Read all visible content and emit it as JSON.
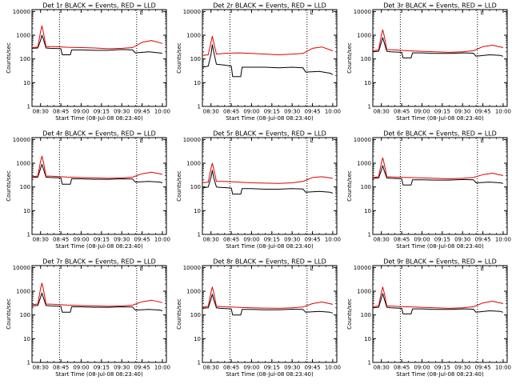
{
  "common": {
    "xlabel": "Start Time (08-Jul-08 08:23:40)",
    "ylabel": "Counts/sec",
    "x_ticks": [
      "08:30",
      "08:45",
      "09:00",
      "09:15",
      "09:30",
      "09:45",
      "10:00"
    ],
    "y_ticks": [
      "1",
      "10",
      "100",
      "1000",
      "10000"
    ],
    "marker": "L",
    "colors": {
      "events": "#000000",
      "lld": "#e00000",
      "frame": "#000000"
    }
  },
  "chart_data": [
    {
      "type": "line",
      "title": "Det 1r BLACK = Events, RED = LLD",
      "xlim": [
        "08:23:40",
        "10:03:00"
      ],
      "ylim": [
        1,
        12000
      ],
      "yscale": "log",
      "grid": false,
      "series": [
        {
          "name": "Events",
          "x": [
            "08:23:40",
            "08:28",
            "08:30",
            "08:31",
            "08:32",
            "08:34",
            "08:37",
            "08:45",
            "08:46",
            "08:52",
            "08:53",
            "09:00",
            "09:10",
            "09:20",
            "09:30",
            "09:38",
            "09:40",
            "09:50",
            "09:58",
            "10:00"
          ],
          "values": [
            280,
            290,
            600,
            1000,
            700,
            290,
            280,
            270,
            150,
            150,
            240,
            240,
            230,
            230,
            250,
            240,
            180,
            200,
            180,
            170
          ]
        },
        {
          "name": "LLD",
          "x": [
            "08:23:40",
            "08:28",
            "08:30",
            "08:31",
            "08:32",
            "08:34",
            "08:40",
            "08:50",
            "09:00",
            "09:10",
            "09:20",
            "09:30",
            "09:38",
            "09:45",
            "09:52",
            "10:00"
          ],
          "values": [
            300,
            320,
            1400,
            2500,
            1400,
            330,
            330,
            310,
            300,
            290,
            270,
            280,
            300,
            500,
            600,
            450
          ]
        }
      ],
      "vlines": [
        "08:44",
        "09:41"
      ]
    },
    {
      "type": "line",
      "title": "Det 2r BLACK = Events, RED = LLD",
      "xlim": [
        "08:23:40",
        "10:03:00"
      ],
      "ylim": [
        1,
        12000
      ],
      "yscale": "log",
      "grid": false,
      "series": [
        {
          "name": "Events",
          "x": [
            "08:23:40",
            "08:28",
            "08:30",
            "08:31",
            "08:32",
            "08:34",
            "08:40",
            "08:45",
            "08:46",
            "08:52",
            "08:53",
            "09:00",
            "09:10",
            "09:20",
            "09:30",
            "09:38",
            "09:40",
            "09:50",
            "09:58",
            "10:00"
          ],
          "values": [
            45,
            50,
            150,
            400,
            200,
            60,
            55,
            50,
            18,
            18,
            45,
            45,
            45,
            42,
            45,
            42,
            28,
            30,
            25,
            22
          ]
        },
        {
          "name": "LLD",
          "x": [
            "08:23:40",
            "08:28",
            "08:30",
            "08:31",
            "08:32",
            "08:34",
            "08:40",
            "08:50",
            "09:00",
            "09:10",
            "09:20",
            "09:30",
            "09:38",
            "09:45",
            "09:52",
            "10:00"
          ],
          "values": [
            140,
            150,
            500,
            900,
            500,
            160,
            170,
            180,
            170,
            160,
            150,
            160,
            170,
            280,
            320,
            220
          ]
        }
      ],
      "vlines": [
        "08:44",
        "09:41"
      ]
    },
    {
      "type": "line",
      "title": "Det 3r BLACK = Events, RED = LLD",
      "xlim": [
        "08:23:40",
        "10:03:00"
      ],
      "ylim": [
        1,
        12000
      ],
      "yscale": "log",
      "grid": false,
      "series": [
        {
          "name": "Events",
          "x": [
            "08:23:40",
            "08:28",
            "08:30",
            "08:31",
            "08:32",
            "08:34",
            "08:37",
            "08:45",
            "08:46",
            "08:52",
            "08:53",
            "09:00",
            "09:10",
            "09:20",
            "09:30",
            "09:38",
            "09:40",
            "09:50",
            "09:58",
            "10:00"
          ],
          "values": [
            200,
            210,
            500,
            800,
            500,
            210,
            200,
            190,
            110,
            110,
            180,
            180,
            170,
            170,
            180,
            175,
            130,
            150,
            140,
            130
          ]
        },
        {
          "name": "LLD",
          "x": [
            "08:23:40",
            "08:28",
            "08:30",
            "08:31",
            "08:32",
            "08:34",
            "08:40",
            "08:50",
            "09:00",
            "09:10",
            "09:20",
            "09:30",
            "09:38",
            "09:45",
            "09:52",
            "10:00"
          ],
          "values": [
            220,
            240,
            1000,
            1700,
            1000,
            250,
            240,
            220,
            210,
            200,
            190,
            200,
            220,
            330,
            380,
            300
          ]
        }
      ],
      "vlines": [
        "08:44",
        "09:41"
      ]
    },
    {
      "type": "line",
      "title": "Det 4r BLACK = Events, RED = LLD",
      "xlim": [
        "08:23:40",
        "10:03:00"
      ],
      "ylim": [
        1,
        12000
      ],
      "yscale": "log",
      "grid": false,
      "series": [
        {
          "name": "Events",
          "x": [
            "08:23:40",
            "08:28",
            "08:30",
            "08:31",
            "08:32",
            "08:34",
            "08:37",
            "08:45",
            "08:46",
            "08:52",
            "08:53",
            "09:00",
            "09:10",
            "09:20",
            "09:30",
            "09:38",
            "09:40",
            "09:50",
            "09:58",
            "10:00"
          ],
          "values": [
            250,
            260,
            600,
            900,
            600,
            260,
            250,
            240,
            130,
            130,
            220,
            220,
            210,
            210,
            220,
            215,
            160,
            170,
            160,
            150
          ]
        },
        {
          "name": "LLD",
          "x": [
            "08:23:40",
            "08:28",
            "08:30",
            "08:31",
            "08:32",
            "08:34",
            "08:40",
            "08:50",
            "09:00",
            "09:10",
            "09:20",
            "09:30",
            "09:38",
            "09:45",
            "09:52",
            "10:00"
          ],
          "values": [
            270,
            290,
            1200,
            2000,
            1200,
            290,
            280,
            260,
            250,
            240,
            230,
            240,
            260,
            360,
            420,
            340
          ]
        }
      ],
      "vlines": [
        "08:44",
        "09:41"
      ]
    },
    {
      "type": "line",
      "title": "Det 5r BLACK = Events, RED = LLD",
      "xlim": [
        "08:23:40",
        "10:03:00"
      ],
      "ylim": [
        1,
        12000
      ],
      "yscale": "log",
      "grid": false,
      "series": [
        {
          "name": "Events",
          "x": [
            "08:23:40",
            "08:28",
            "08:30",
            "08:31",
            "08:32",
            "08:34",
            "08:37",
            "08:45",
            "08:46",
            "08:52",
            "08:53",
            "09:00",
            "09:10",
            "09:20",
            "09:30",
            "09:38",
            "09:40",
            "09:50",
            "09:58",
            "10:00"
          ],
          "values": [
            90,
            100,
            250,
            500,
            250,
            100,
            95,
            90,
            50,
            50,
            85,
            85,
            80,
            80,
            85,
            82,
            60,
            65,
            60,
            55
          ]
        },
        {
          "name": "LLD",
          "x": [
            "08:23:40",
            "08:28",
            "08:30",
            "08:31",
            "08:32",
            "08:34",
            "08:40",
            "08:50",
            "09:00",
            "09:10",
            "09:20",
            "09:30",
            "09:38",
            "09:45",
            "09:52",
            "10:00"
          ],
          "values": [
            150,
            160,
            600,
            1000,
            600,
            170,
            170,
            160,
            150,
            145,
            140,
            150,
            170,
            250,
            270,
            230
          ]
        }
      ],
      "vlines": [
        "08:44",
        "09:41"
      ]
    },
    {
      "type": "line",
      "title": "Det 6r BLACK = Events, RED = LLD",
      "xlim": [
        "08:23:40",
        "10:03:00"
      ],
      "ylim": [
        1,
        12000
      ],
      "yscale": "log",
      "grid": false,
      "series": [
        {
          "name": "Events",
          "x": [
            "08:23:40",
            "08:28",
            "08:30",
            "08:31",
            "08:32",
            "08:34",
            "08:37",
            "08:45",
            "08:46",
            "08:52",
            "08:53",
            "09:00",
            "09:10",
            "09:20",
            "09:30",
            "09:38",
            "09:40",
            "09:50",
            "09:58",
            "10:00"
          ],
          "values": [
            230,
            240,
            500,
            800,
            500,
            240,
            230,
            220,
            120,
            120,
            200,
            200,
            195,
            195,
            205,
            200,
            150,
            160,
            150,
            140
          ]
        },
        {
          "name": "LLD",
          "x": [
            "08:23:40",
            "08:28",
            "08:30",
            "08:31",
            "08:32",
            "08:34",
            "08:40",
            "08:50",
            "09:00",
            "09:10",
            "09:20",
            "09:30",
            "09:38",
            "09:45",
            "09:52",
            "10:00"
          ],
          "values": [
            250,
            270,
            1000,
            1700,
            1000,
            270,
            260,
            250,
            240,
            230,
            220,
            230,
            250,
            330,
            380,
            300
          ]
        }
      ],
      "vlines": [
        "08:44",
        "09:41"
      ]
    },
    {
      "type": "line",
      "title": "Det 7r BLACK = Events, RED = LLD",
      "xlim": [
        "08:23:40",
        "10:03:00"
      ],
      "ylim": [
        1,
        12000
      ],
      "yscale": "log",
      "grid": false,
      "series": [
        {
          "name": "Events",
          "x": [
            "08:23:40",
            "08:28",
            "08:30",
            "08:31",
            "08:32",
            "08:34",
            "08:37",
            "08:45",
            "08:46",
            "08:52",
            "08:53",
            "09:00",
            "09:10",
            "09:20",
            "09:30",
            "09:38",
            "09:40",
            "09:50",
            "09:58",
            "10:00"
          ],
          "values": [
            240,
            250,
            550,
            850,
            550,
            250,
            240,
            230,
            130,
            130,
            220,
            220,
            210,
            210,
            220,
            215,
            160,
            170,
            160,
            150
          ]
        },
        {
          "name": "LLD",
          "x": [
            "08:23:40",
            "08:28",
            "08:30",
            "08:31",
            "08:32",
            "08:34",
            "08:40",
            "08:50",
            "09:00",
            "09:10",
            "09:20",
            "09:30",
            "09:38",
            "09:45",
            "09:52",
            "10:00"
          ],
          "values": [
            270,
            290,
            1300,
            2200,
            1300,
            290,
            280,
            260,
            250,
            240,
            230,
            240,
            260,
            360,
            420,
            330
          ]
        }
      ],
      "vlines": [
        "08:44",
        "09:41"
      ]
    },
    {
      "type": "line",
      "title": "Det 8r BLACK = Events, RED = LLD",
      "xlim": [
        "08:23:40",
        "10:03:00"
      ],
      "ylim": [
        1,
        12000
      ],
      "yscale": "log",
      "grid": false,
      "series": [
        {
          "name": "Events",
          "x": [
            "08:23:40",
            "08:28",
            "08:30",
            "08:31",
            "08:32",
            "08:34",
            "08:37",
            "08:45",
            "08:46",
            "08:52",
            "08:53",
            "09:00",
            "09:10",
            "09:20",
            "09:30",
            "09:38",
            "09:40",
            "09:50",
            "09:58",
            "10:00"
          ],
          "values": [
            190,
            200,
            450,
            750,
            450,
            200,
            190,
            180,
            100,
            100,
            170,
            170,
            165,
            165,
            175,
            170,
            130,
            140,
            130,
            120
          ]
        },
        {
          "name": "LLD",
          "x": [
            "08:23:40",
            "08:28",
            "08:30",
            "08:31",
            "08:32",
            "08:34",
            "08:40",
            "08:50",
            "09:00",
            "09:10",
            "09:20",
            "09:30",
            "09:38",
            "09:45",
            "09:52",
            "10:00"
          ],
          "values": [
            210,
            230,
            900,
            1500,
            900,
            230,
            220,
            210,
            200,
            195,
            190,
            200,
            215,
            300,
            350,
            280
          ]
        }
      ],
      "vlines": [
        "08:44",
        "09:41"
      ]
    },
    {
      "type": "line",
      "title": "Det 9r BLACK = Events, RED = LLD",
      "xlim": [
        "08:23:40",
        "10:03:00"
      ],
      "ylim": [
        1,
        12000
      ],
      "yscale": "log",
      "grid": false,
      "series": [
        {
          "name": "Events",
          "x": [
            "08:23:40",
            "08:28",
            "08:30",
            "08:31",
            "08:32",
            "08:34",
            "08:37",
            "08:45",
            "08:46",
            "08:52",
            "08:53",
            "09:00",
            "09:10",
            "09:20",
            "09:30",
            "09:38",
            "09:40",
            "09:50",
            "09:58",
            "10:00"
          ],
          "values": [
            200,
            210,
            500,
            800,
            500,
            210,
            200,
            190,
            110,
            110,
            180,
            180,
            170,
            170,
            180,
            175,
            130,
            150,
            140,
            130
          ]
        },
        {
          "name": "LLD",
          "x": [
            "08:23:40",
            "08:28",
            "08:30",
            "08:31",
            "08:32",
            "08:34",
            "08:40",
            "08:50",
            "09:00",
            "09:10",
            "09:20",
            "09:30",
            "09:38",
            "09:45",
            "09:52",
            "10:00"
          ],
          "values": [
            220,
            240,
            900,
            1500,
            900,
            240,
            230,
            220,
            210,
            200,
            190,
            200,
            220,
            320,
            380,
            300
          ]
        }
      ],
      "vlines": [
        "08:44",
        "09:41"
      ]
    }
  ]
}
